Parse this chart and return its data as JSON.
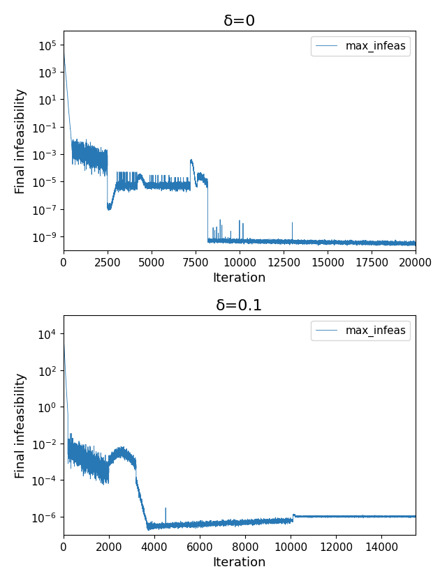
{
  "plot1": {
    "title": "δ=0",
    "xlabel": "Iteration",
    "ylabel": "Final infeasibility",
    "legend_label": "max_infeas",
    "line_color": "#2878b5",
    "xlim": [
      0,
      20000
    ],
    "ylim": [
      1e-10,
      1000000.0
    ],
    "yticks_exp": [
      -9,
      -7,
      -5,
      -3,
      -1,
      1,
      3,
      5
    ],
    "xticks": [
      0,
      2500,
      5000,
      7500,
      10000,
      12500,
      15000,
      17500,
      20000
    ]
  },
  "plot2": {
    "title": "δ=0.1",
    "xlabel": "Iteration",
    "ylabel": "Final infeasibility",
    "legend_label": "max_infeas",
    "line_color": "#2878b5",
    "xlim": [
      0,
      15500
    ],
    "ylim": [
      1e-07,
      100000.0
    ],
    "yticks_exp": [
      -6,
      -4,
      -2,
      0,
      2,
      4
    ],
    "xticks": [
      0,
      2000,
      4000,
      6000,
      8000,
      10000,
      12000,
      14000
    ]
  },
  "line_width": 0.6,
  "title_fontsize": 16,
  "label_fontsize": 13,
  "tick_fontsize": 11,
  "legend_fontsize": 11,
  "fig_background": "#ffffff"
}
